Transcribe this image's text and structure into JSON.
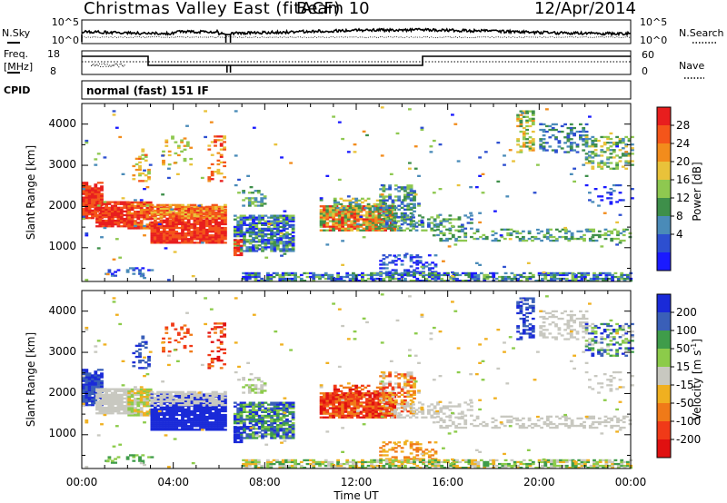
{
  "header": {
    "title": "Christmas Valley East (fitACF)",
    "beam": "Beam 10",
    "date": "12/Apr/2014"
  },
  "noise_panel": {
    "left_label": "N.Sky",
    "left_ticks": [
      "10^5",
      "10^0"
    ],
    "right_ticks": [
      "10^5",
      "10^0"
    ],
    "right_label": "N.Search"
  },
  "freq_panel": {
    "left_label_1": "Freq.",
    "left_label_2": "[MHz]",
    "left_ticks": [
      "18",
      "8"
    ],
    "right_ticks": [
      "60",
      "0"
    ],
    "right_label": "Nave"
  },
  "cpid_panel": {
    "label": "CPID",
    "mode": "normal (fast) 151 IF"
  },
  "chart_data": [
    {
      "type": "heatmap",
      "name": "power",
      "ylabel": "Slant Range [km]",
      "y_ticks": [
        "1000",
        "2000",
        "3000",
        "4000"
      ],
      "ylim": [
        180,
        4500
      ],
      "xlim_hours": [
        0,
        24
      ],
      "colorbar_label": "Power [dB]",
      "colorbar_ticks": [
        "28",
        "24",
        "20",
        "16",
        "12",
        "8",
        "4"
      ],
      "colorbar_colors": [
        "#e81e1e",
        "#f4551a",
        "#f28c1c",
        "#e9c23a",
        "#8ec850",
        "#3e8f4a",
        "#4a8bb8",
        "#2d4fd0",
        "#1a1aff"
      ]
    },
    {
      "type": "heatmap",
      "name": "velocity",
      "ylabel": "Slant Range [km]",
      "y_ticks": [
        "1000",
        "2000",
        "3000",
        "4000"
      ],
      "ylim": [
        180,
        4500
      ],
      "xlim_hours": [
        0,
        24
      ],
      "colorbar_label": "Velocity [m s",
      "colorbar_label_sup": "-1",
      "colorbar_label_end": "]",
      "colorbar_ticks": [
        "200",
        "100",
        "50",
        "15",
        "-15",
        "-50",
        "-100",
        "-200"
      ],
      "colorbar_colors": [
        "#1a2ad8",
        "#3a5fb8",
        "#3f9c4a",
        "#8ccb4a",
        "#c8c8c0",
        "#f0b020",
        "#f07a18",
        "#f03a18",
        "#e01010"
      ]
    }
  ],
  "x_axis": {
    "ticks": [
      "00:00",
      "04:00",
      "08:00",
      "12:00",
      "16:00",
      "20:00",
      "00:00"
    ],
    "label": "Time UT"
  }
}
